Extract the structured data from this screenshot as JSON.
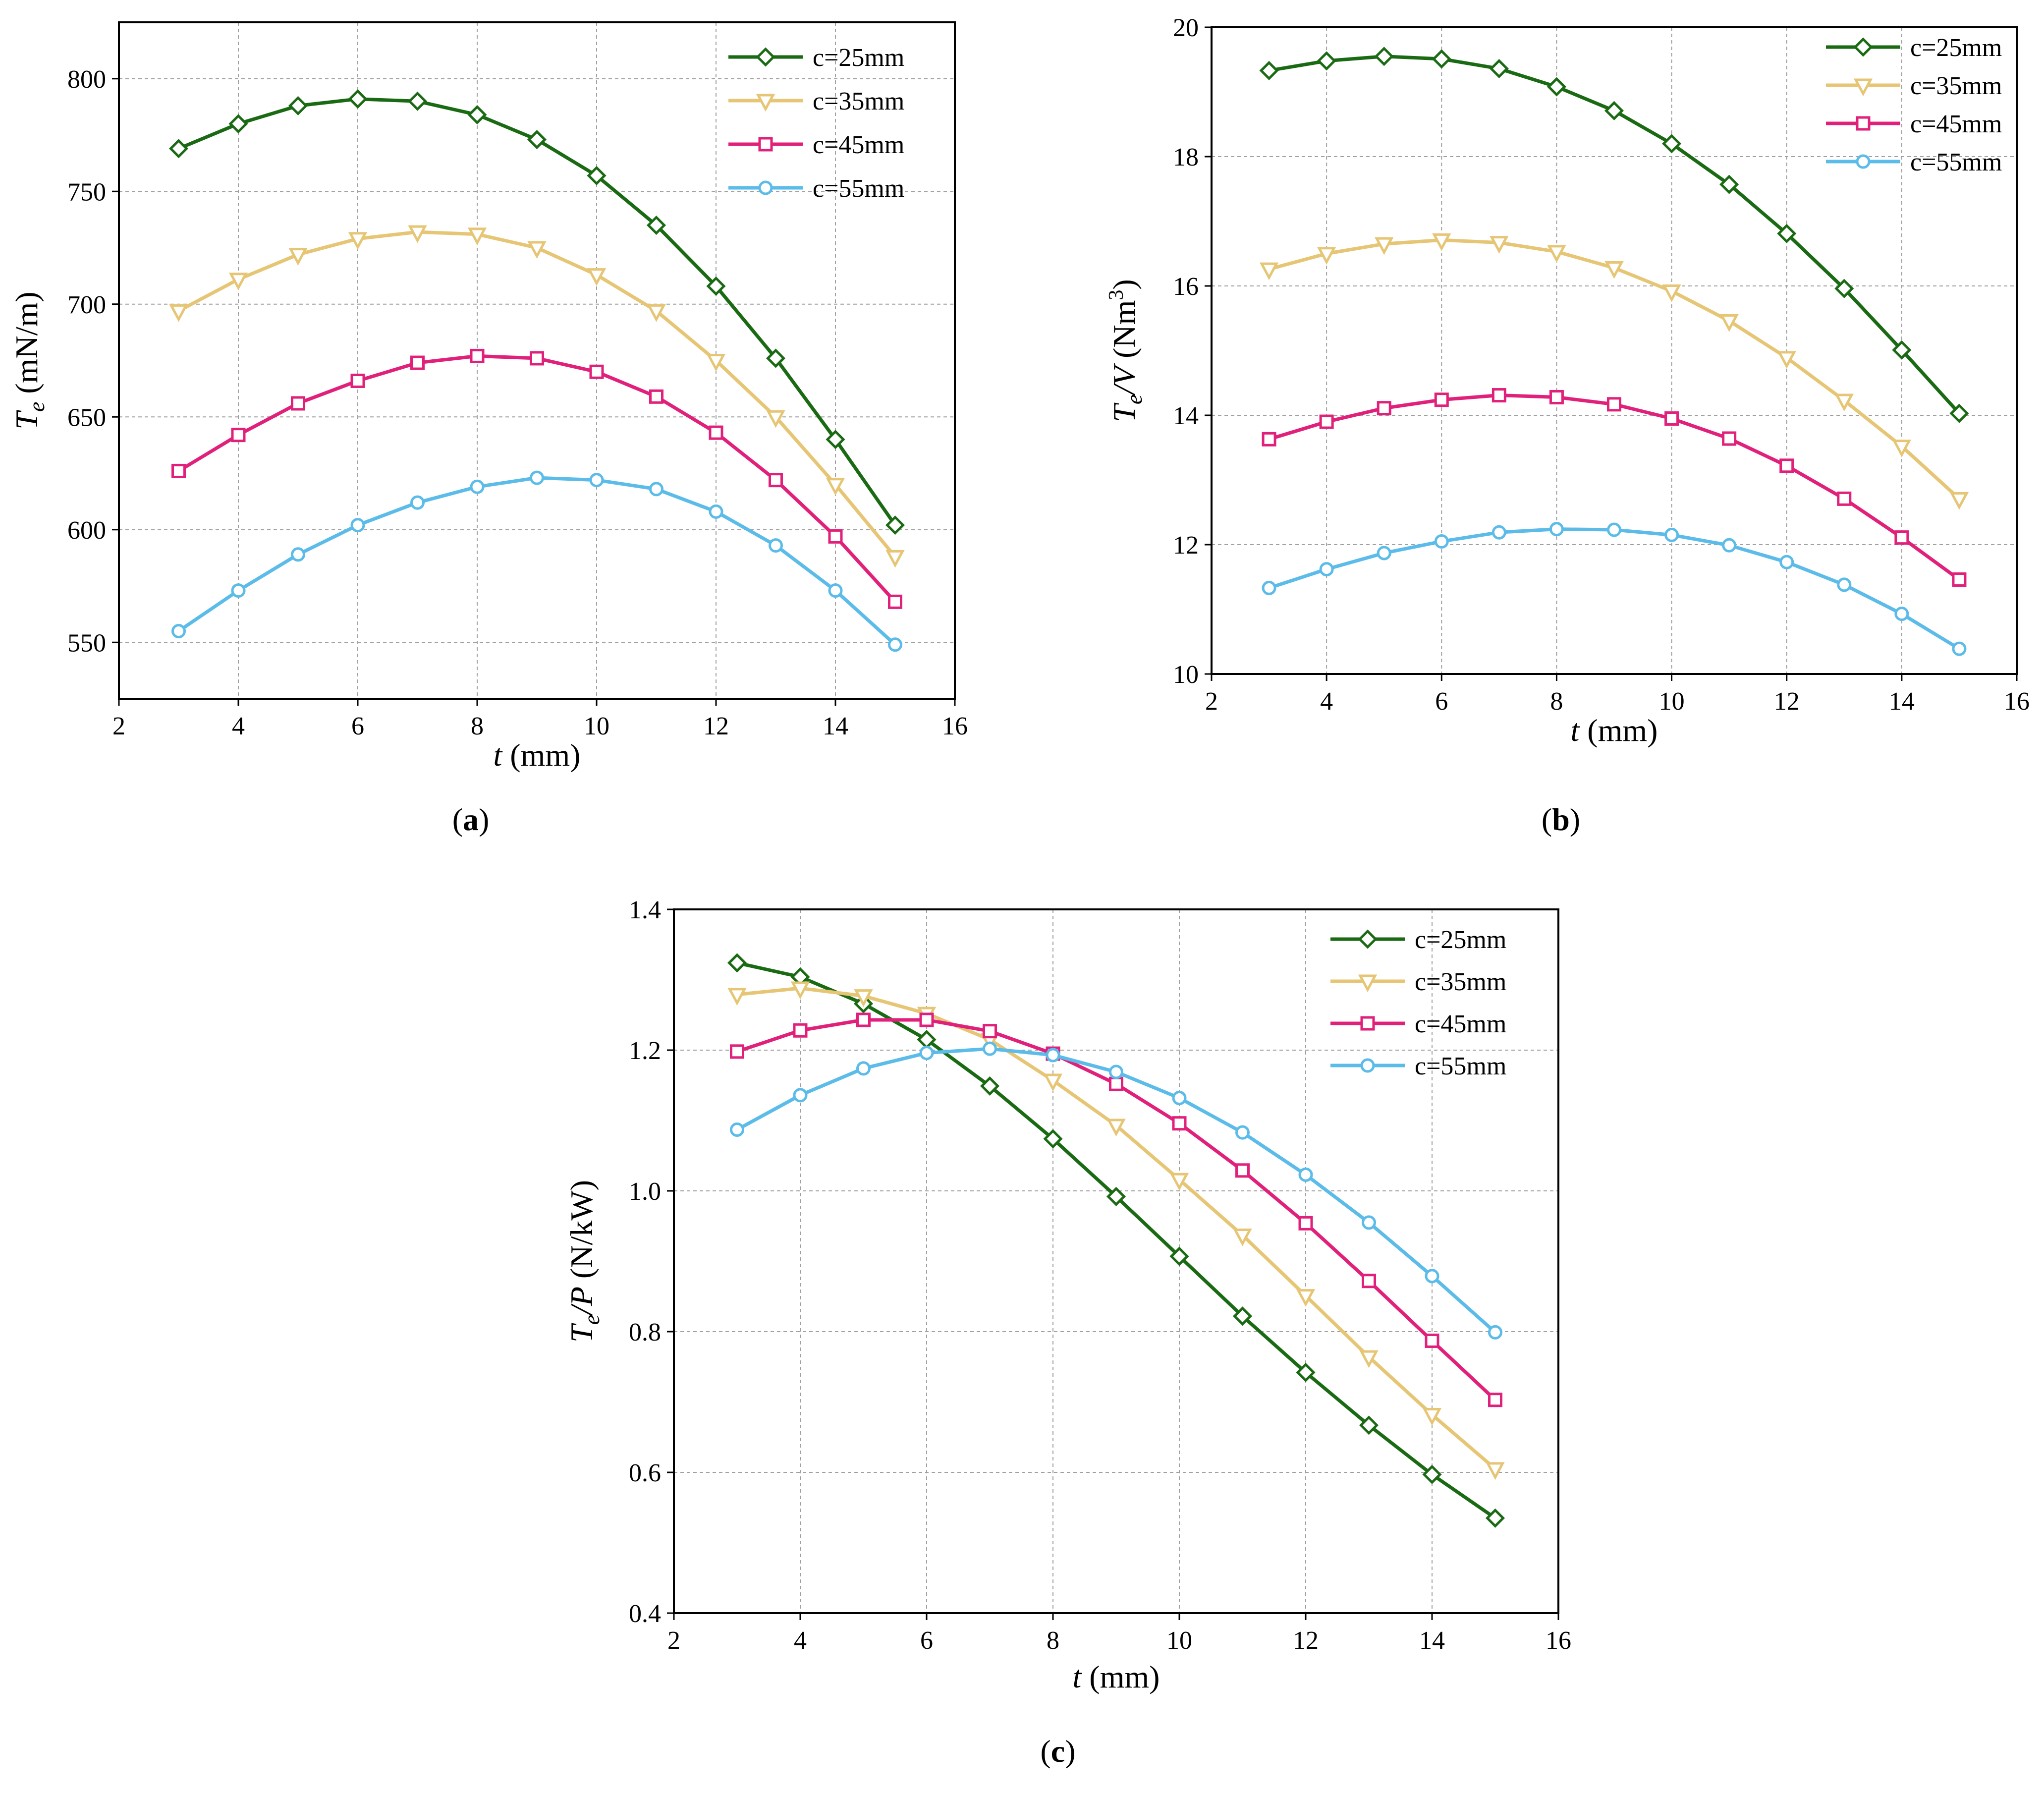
{
  "chart_data": [
    {
      "panel": "a",
      "type": "line",
      "xlabel_italic": "t",
      "xlabel_unit": " (mm)",
      "ylabel_main": "T",
      "ylabel_sub": "e",
      "ylabel_unit": " (mN/m)",
      "xlim": [
        2,
        16
      ],
      "ylim": [
        525,
        825
      ],
      "xticks": [
        2,
        4,
        6,
        8,
        10,
        12,
        14,
        16
      ],
      "yticks": [
        550,
        600,
        650,
        700,
        750,
        800
      ],
      "x": [
        3,
        4,
        5,
        6,
        7,
        8,
        9,
        10,
        11,
        12,
        13,
        14,
        15
      ],
      "series": [
        {
          "name": "c=25mm",
          "color": "#1a6a14",
          "marker": "diamond",
          "values": [
            769,
            780,
            788,
            791,
            790,
            784,
            773,
            757,
            735,
            708,
            676,
            640,
            602
          ]
        },
        {
          "name": "c=35mm",
          "color": "#e6c675",
          "marker": "triangle-down",
          "values": [
            697,
            711,
            722,
            729,
            732,
            731,
            725,
            713,
            697,
            675,
            650,
            620,
            588
          ]
        },
        {
          "name": "c=45mm",
          "color": "#e0207a",
          "marker": "square",
          "values": [
            626,
            642,
            656,
            666,
            674,
            677,
            676,
            670,
            659,
            643,
            622,
            597,
            568
          ]
        },
        {
          "name": "c=55mm",
          "color": "#5bbbe9",
          "marker": "circle",
          "values": [
            555,
            573,
            589,
            602,
            612,
            619,
            623,
            622,
            618,
            608,
            593,
            573,
            549
          ]
        }
      ],
      "panel_label": "a"
    },
    {
      "panel": "b",
      "type": "line",
      "xlabel_italic": "t",
      "xlabel_unit": " (mm)",
      "ylabel_main": "T",
      "ylabel_sub": "e",
      "ylabel_mid": "/V",
      "ylabel_unit": " (Nm",
      "ylabel_sup": "3",
      "ylabel_close": ")",
      "xlim": [
        2,
        16
      ],
      "ylim": [
        10,
        20
      ],
      "xticks": [
        2,
        4,
        6,
        8,
        10,
        12,
        14,
        16
      ],
      "yticks": [
        10,
        12,
        14,
        16,
        18,
        20
      ],
      "x": [
        3,
        4,
        5,
        6,
        7,
        8,
        9,
        10,
        11,
        12,
        13,
        14,
        15
      ],
      "series": [
        {
          "name": "c=25mm",
          "color": "#1a6a14",
          "marker": "diamond",
          "values": [
            19.33,
            19.48,
            19.55,
            19.51,
            19.36,
            19.08,
            18.71,
            18.2,
            17.57,
            16.81,
            15.96,
            15.01,
            14.03
          ]
        },
        {
          "name": "c=35mm",
          "color": "#e6c675",
          "marker": "triangle-down",
          "values": [
            16.26,
            16.5,
            16.65,
            16.71,
            16.67,
            16.53,
            16.28,
            15.92,
            15.46,
            14.89,
            14.23,
            13.52,
            12.71
          ]
        },
        {
          "name": "c=45mm",
          "color": "#e0207a",
          "marker": "square",
          "values": [
            13.63,
            13.9,
            14.11,
            14.24,
            14.31,
            14.28,
            14.17,
            13.95,
            13.64,
            13.22,
            12.71,
            12.11,
            11.46
          ]
        },
        {
          "name": "c=55mm",
          "color": "#5bbbe9",
          "marker": "circle",
          "values": [
            11.33,
            11.62,
            11.87,
            12.05,
            12.19,
            12.24,
            12.23,
            12.15,
            11.99,
            11.73,
            11.38,
            10.93,
            10.39
          ]
        }
      ],
      "panel_label": "b"
    },
    {
      "panel": "c",
      "type": "line",
      "xlabel_italic": "t",
      "xlabel_unit": " (mm)",
      "ylabel_main": "T",
      "ylabel_sub": "e",
      "ylabel_mid": "/P",
      "ylabel_unit": " (N/kW)",
      "xlim": [
        2,
        16
      ],
      "ylim": [
        0.4,
        1.4
      ],
      "xticks": [
        2,
        4,
        6,
        8,
        10,
        12,
        14,
        16
      ],
      "yticks": [
        0.4,
        0.6,
        0.8,
        1.0,
        1.2,
        1.4
      ],
      "ytick_labels": [
        "0.4",
        "0.6",
        "0.8",
        "1.0",
        "1.2",
        "1.4"
      ],
      "x": [
        3,
        4,
        5,
        6,
        7,
        8,
        9,
        10,
        11,
        12,
        13,
        14,
        15
      ],
      "series": [
        {
          "name": "c=25mm",
          "color": "#1a6a14",
          "marker": "diamond",
          "values": [
            1.324,
            1.304,
            1.266,
            1.215,
            1.149,
            1.074,
            0.992,
            0.907,
            0.822,
            0.742,
            0.667,
            0.597,
            0.535
          ]
        },
        {
          "name": "c=35mm",
          "color": "#e6c675",
          "marker": "triangle-down",
          "values": [
            1.279,
            1.288,
            1.277,
            1.252,
            1.215,
            1.157,
            1.093,
            1.016,
            0.937,
            0.851,
            0.764,
            0.682,
            0.605
          ]
        },
        {
          "name": "c=45mm",
          "color": "#e0207a",
          "marker": "square",
          "values": [
            1.198,
            1.228,
            1.243,
            1.243,
            1.227,
            1.195,
            1.152,
            1.096,
            1.029,
            0.954,
            0.872,
            0.787,
            0.703
          ]
        },
        {
          "name": "c=55mm",
          "color": "#5bbbe9",
          "marker": "circle",
          "values": [
            1.087,
            1.136,
            1.174,
            1.196,
            1.202,
            1.193,
            1.169,
            1.132,
            1.083,
            1.023,
            0.955,
            0.879,
            0.799
          ]
        }
      ],
      "panel_label": "c"
    }
  ]
}
